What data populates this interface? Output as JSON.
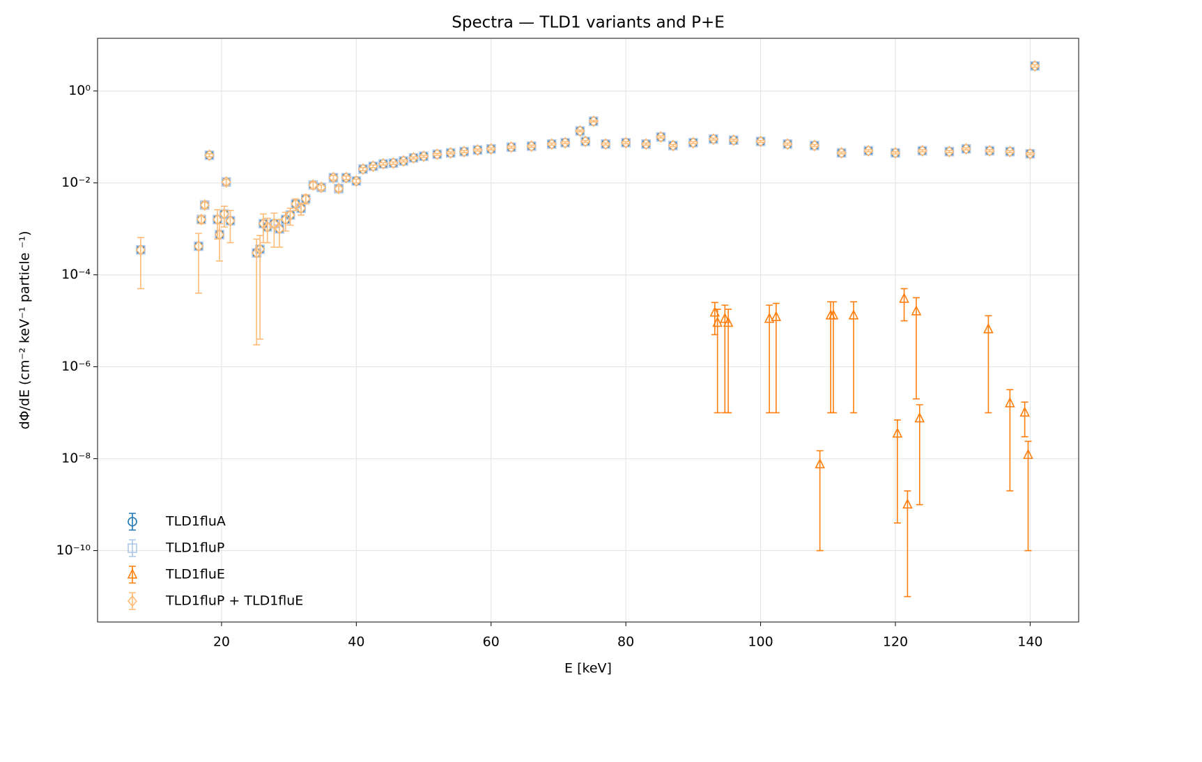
{
  "chart_data": {
    "type": "errorbar",
    "title": "Spectra — TLD1 variants and P+E",
    "x_label": "E [keV]",
    "y_label": "dΦ/dE  (cm⁻² keV⁻¹ particle ⁻¹)",
    "xlim": [
      1.6,
      147.2
    ],
    "ylim": [
      2.8e-12,
      14
    ],
    "log_y": true,
    "grid": true,
    "legend_loc": "lower left",
    "xticks": [
      20,
      40,
      60,
      80,
      100,
      120,
      140
    ],
    "yticks": [
      {
        "value": 1,
        "label": "10⁰"
      },
      {
        "value": 0.01,
        "label": "10⁻²"
      },
      {
        "value": 0.0001,
        "label": "10⁻⁴"
      },
      {
        "value": 1e-06,
        "label": "10⁻⁶"
      },
      {
        "value": 1e-08,
        "label": "10⁻⁸"
      },
      {
        "value": 1e-10,
        "label": "10⁻¹⁰"
      }
    ],
    "x": [
      8.0,
      16.6,
      17.0,
      17.5,
      18.2,
      19.4,
      19.7,
      20.4,
      20.7,
      21.3,
      25.2,
      25.7,
      26.2,
      26.8,
      27.8,
      28.6,
      29.5,
      30.2,
      31.0,
      31.8,
      32.5,
      33.6,
      34.8,
      36.6,
      37.4,
      38.5,
      40.0,
      41.0,
      42.5,
      44.0,
      45.5,
      47.0,
      48.5,
      50.0,
      52.0,
      54.0,
      56.0,
      58.0,
      60.0,
      63.0,
      66.0,
      69.0,
      71.0,
      73.2,
      74.0,
      75.2,
      77.0,
      80.0,
      83.0,
      85.2,
      87.0,
      90.0,
      93.0,
      96.0,
      100.0,
      104.0,
      108.0,
      112.0,
      116.0,
      120.0,
      124.0,
      128.0,
      130.5,
      134.0,
      137.0,
      140.0,
      140.7
    ],
    "series": [
      {
        "name": "TLD1fluA",
        "color": "#1f77b4",
        "marker": "circle",
        "values": [
          0.00035,
          0.00042,
          0.0016,
          0.0033,
          0.04,
          0.0016,
          0.00075,
          0.0021,
          0.0105,
          0.0015,
          0.0003,
          0.00036,
          0.0013,
          0.0011,
          0.0013,
          0.001,
          0.0016,
          0.002,
          0.0035,
          0.0028,
          0.0045,
          0.009,
          0.008,
          0.013,
          0.0075,
          0.013,
          0.011,
          0.02,
          0.023,
          0.026,
          0.027,
          0.03,
          0.035,
          0.038,
          0.042,
          0.045,
          0.048,
          0.052,
          0.055,
          0.06,
          0.063,
          0.07,
          0.075,
          0.135,
          0.08,
          0.22,
          0.07,
          0.075,
          0.07,
          0.1,
          0.065,
          0.075,
          0.09,
          0.085,
          0.08,
          0.07,
          0.065,
          0.045,
          0.05,
          0.045,
          0.05,
          0.048,
          0.055,
          0.05,
          0.048,
          0.043,
          3.5
        ]
      },
      {
        "name": "TLD1fluP",
        "color": "#aec7e8",
        "marker": "square",
        "values": [
          0.00035,
          0.00042,
          0.0016,
          0.0033,
          0.04,
          0.0016,
          0.00075,
          0.0021,
          0.0105,
          0.0015,
          0.0003,
          0.00036,
          0.0013,
          0.0011,
          0.0013,
          0.001,
          0.0016,
          0.002,
          0.0035,
          0.0028,
          0.0045,
          0.009,
          0.008,
          0.013,
          0.0075,
          0.013,
          0.011,
          0.02,
          0.023,
          0.026,
          0.027,
          0.03,
          0.035,
          0.038,
          0.042,
          0.045,
          0.048,
          0.052,
          0.055,
          0.06,
          0.063,
          0.07,
          0.075,
          0.135,
          0.08,
          0.22,
          0.07,
          0.075,
          0.07,
          0.1,
          0.065,
          0.075,
          0.09,
          0.085,
          0.08,
          0.07,
          0.065,
          0.045,
          0.05,
          0.045,
          0.05,
          0.048,
          0.055,
          0.05,
          0.048,
          0.043,
          3.5
        ]
      },
      {
        "name": "TLD1fluE",
        "color": "#ff7f0e",
        "marker": "triangle",
        "x": [
          93.2,
          93.6,
          94.7,
          95.2,
          101.3,
          102.3,
          108.8,
          110.4,
          110.8,
          113.8,
          120.3,
          121.3,
          121.8,
          123.1,
          123.6,
          133.8,
          137.0,
          139.2,
          139.7
        ],
        "values": [
          1.5e-05,
          9e-06,
          1.1e-05,
          9e-06,
          1.1e-05,
          1.2e-05,
          7.5e-09,
          1.3e-05,
          1.3e-05,
          1.3e-05,
          3.5e-08,
          3e-05,
          1e-09,
          1.6e-05,
          7.5e-08,
          6.5e-06,
          1.6e-07,
          1e-07,
          1.2e-08
        ],
        "errors": [
          1e-05,
          8.9e-06,
          1.09e-05,
          8.9e-06,
          1.09e-05,
          1.19e-05,
          7.4e-09,
          1.29e-05,
          1.29e-05,
          1.29e-05,
          3.46e-08,
          2e-05,
          9.9e-10,
          1.58e-05,
          7.4e-08,
          6.4e-06,
          1.58e-07,
          7e-08,
          1.19e-08
        ]
      },
      {
        "name": "TLD1fluP + TLD1fluE",
        "color": "#ffbb78",
        "marker": "diamond",
        "values": [
          0.00035,
          0.00042,
          0.0016,
          0.0033,
          0.04,
          0.0016,
          0.00075,
          0.0021,
          0.0105,
          0.0015,
          0.0003,
          0.00036,
          0.0013,
          0.0011,
          0.0013,
          0.001,
          0.0016,
          0.002,
          0.0035,
          0.0028,
          0.0045,
          0.009,
          0.008,
          0.013,
          0.0075,
          0.013,
          0.011,
          0.02,
          0.023,
          0.026,
          0.027,
          0.03,
          0.035,
          0.038,
          0.042,
          0.045,
          0.048,
          0.052,
          0.055,
          0.06,
          0.063,
          0.07,
          0.075,
          0.135,
          0.08,
          0.22,
          0.07,
          0.075,
          0.07,
          0.1,
          0.065,
          0.075,
          0.09,
          0.085,
          0.08,
          0.07,
          0.065,
          0.045,
          0.05,
          0.045,
          0.05,
          0.048,
          0.055,
          0.05,
          0.048,
          0.043,
          3.5
        ],
        "errors": [
          0.0003,
          0.00038,
          0.0003,
          0.0005,
          0.003,
          0.001,
          0.00055,
          0.001,
          0.0015,
          0.001,
          0.000297,
          0.000356,
          0.0008,
          0.0006,
          0.0009,
          0.0006,
          0.0007,
          0.0008,
          0.001,
          0.0008,
          0.001,
          0.0015,
          0.001,
          0.0015,
          0.001,
          0.0012,
          0.001,
          0.0015,
          0.0015,
          0.0015,
          0.0015,
          0.0015,
          0.0018,
          0.0019,
          0.002,
          0.0022,
          0.0024,
          0.0026,
          0.0027,
          0.003,
          0.0031,
          0.0035,
          0.0037,
          0.006,
          0.004,
          0.008,
          0.0035,
          0.0037,
          0.0035,
          0.005,
          0.0032,
          0.0037,
          0.0045,
          0.0042,
          0.004,
          0.0035,
          0.0032,
          0.0022,
          0.0025,
          0.0022,
          0.0025,
          0.0024,
          0.0027,
          0.0025,
          0.0024,
          0.0021,
          0.2
        ]
      }
    ]
  }
}
